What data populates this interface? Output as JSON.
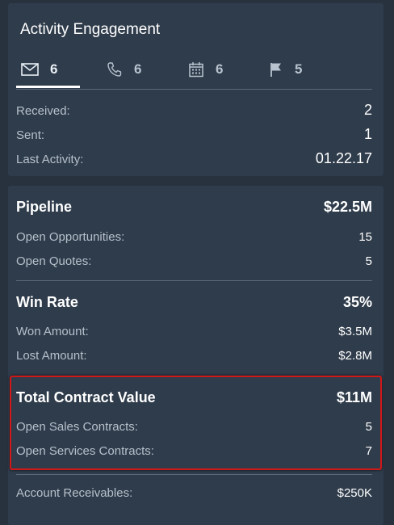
{
  "activity": {
    "title": "Activity Engagement",
    "tabs": [
      {
        "icon": "envelope-icon",
        "count": "6",
        "active": true
      },
      {
        "icon": "phone-icon",
        "count": "6",
        "active": false
      },
      {
        "icon": "calendar-icon",
        "count": "6",
        "active": false
      },
      {
        "icon": "flag-icon",
        "count": "5",
        "active": false
      }
    ],
    "rows": [
      {
        "label": "Received:",
        "value": "2"
      },
      {
        "label": "Sent:",
        "value": "1"
      },
      {
        "label": "Last Activity:",
        "value": "01.22.17"
      }
    ]
  },
  "pipeline": {
    "label": "Pipeline",
    "value": "$22.5M",
    "rows": [
      {
        "label": "Open Opportunities:",
        "value": "15"
      },
      {
        "label": "Open Quotes:",
        "value": "5"
      }
    ]
  },
  "win_rate": {
    "label": "Win Rate",
    "value": "35%",
    "rows": [
      {
        "label": "Won Amount:",
        "value": "$3.5M"
      },
      {
        "label": "Lost Amount:",
        "value": "$2.8M"
      }
    ]
  },
  "contract": {
    "label": "Total Contract Value",
    "value": "$11M",
    "rows": [
      {
        "label": "Open Sales Contracts:",
        "value": "5"
      },
      {
        "label": "Open Services Contracts:",
        "value": "7"
      }
    ]
  },
  "receivables": {
    "label": "Account Receivables:",
    "value": "$250K"
  },
  "colors": {
    "background": "#27323e",
    "card": "#2f3c4b",
    "highlight": "#d01818"
  }
}
